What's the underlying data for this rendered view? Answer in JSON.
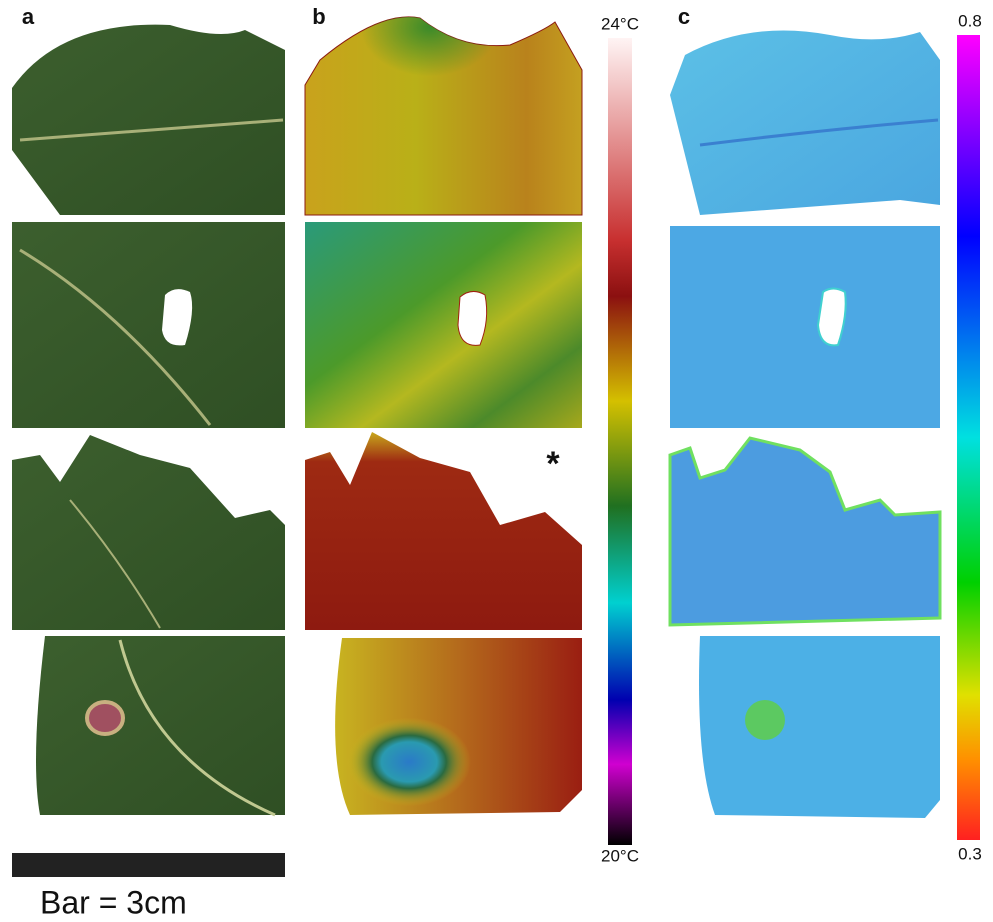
{
  "panels": {
    "a": {
      "label": "a",
      "scale_bar": "Bar = 3cm"
    },
    "b": {
      "label": "b",
      "colorbar": {
        "top": "24°C",
        "bottom": "20°C"
      },
      "marker": "*"
    },
    "c": {
      "label": "c",
      "colorbar": {
        "top": "0.8",
        "bottom": "0.3"
      }
    }
  }
}
